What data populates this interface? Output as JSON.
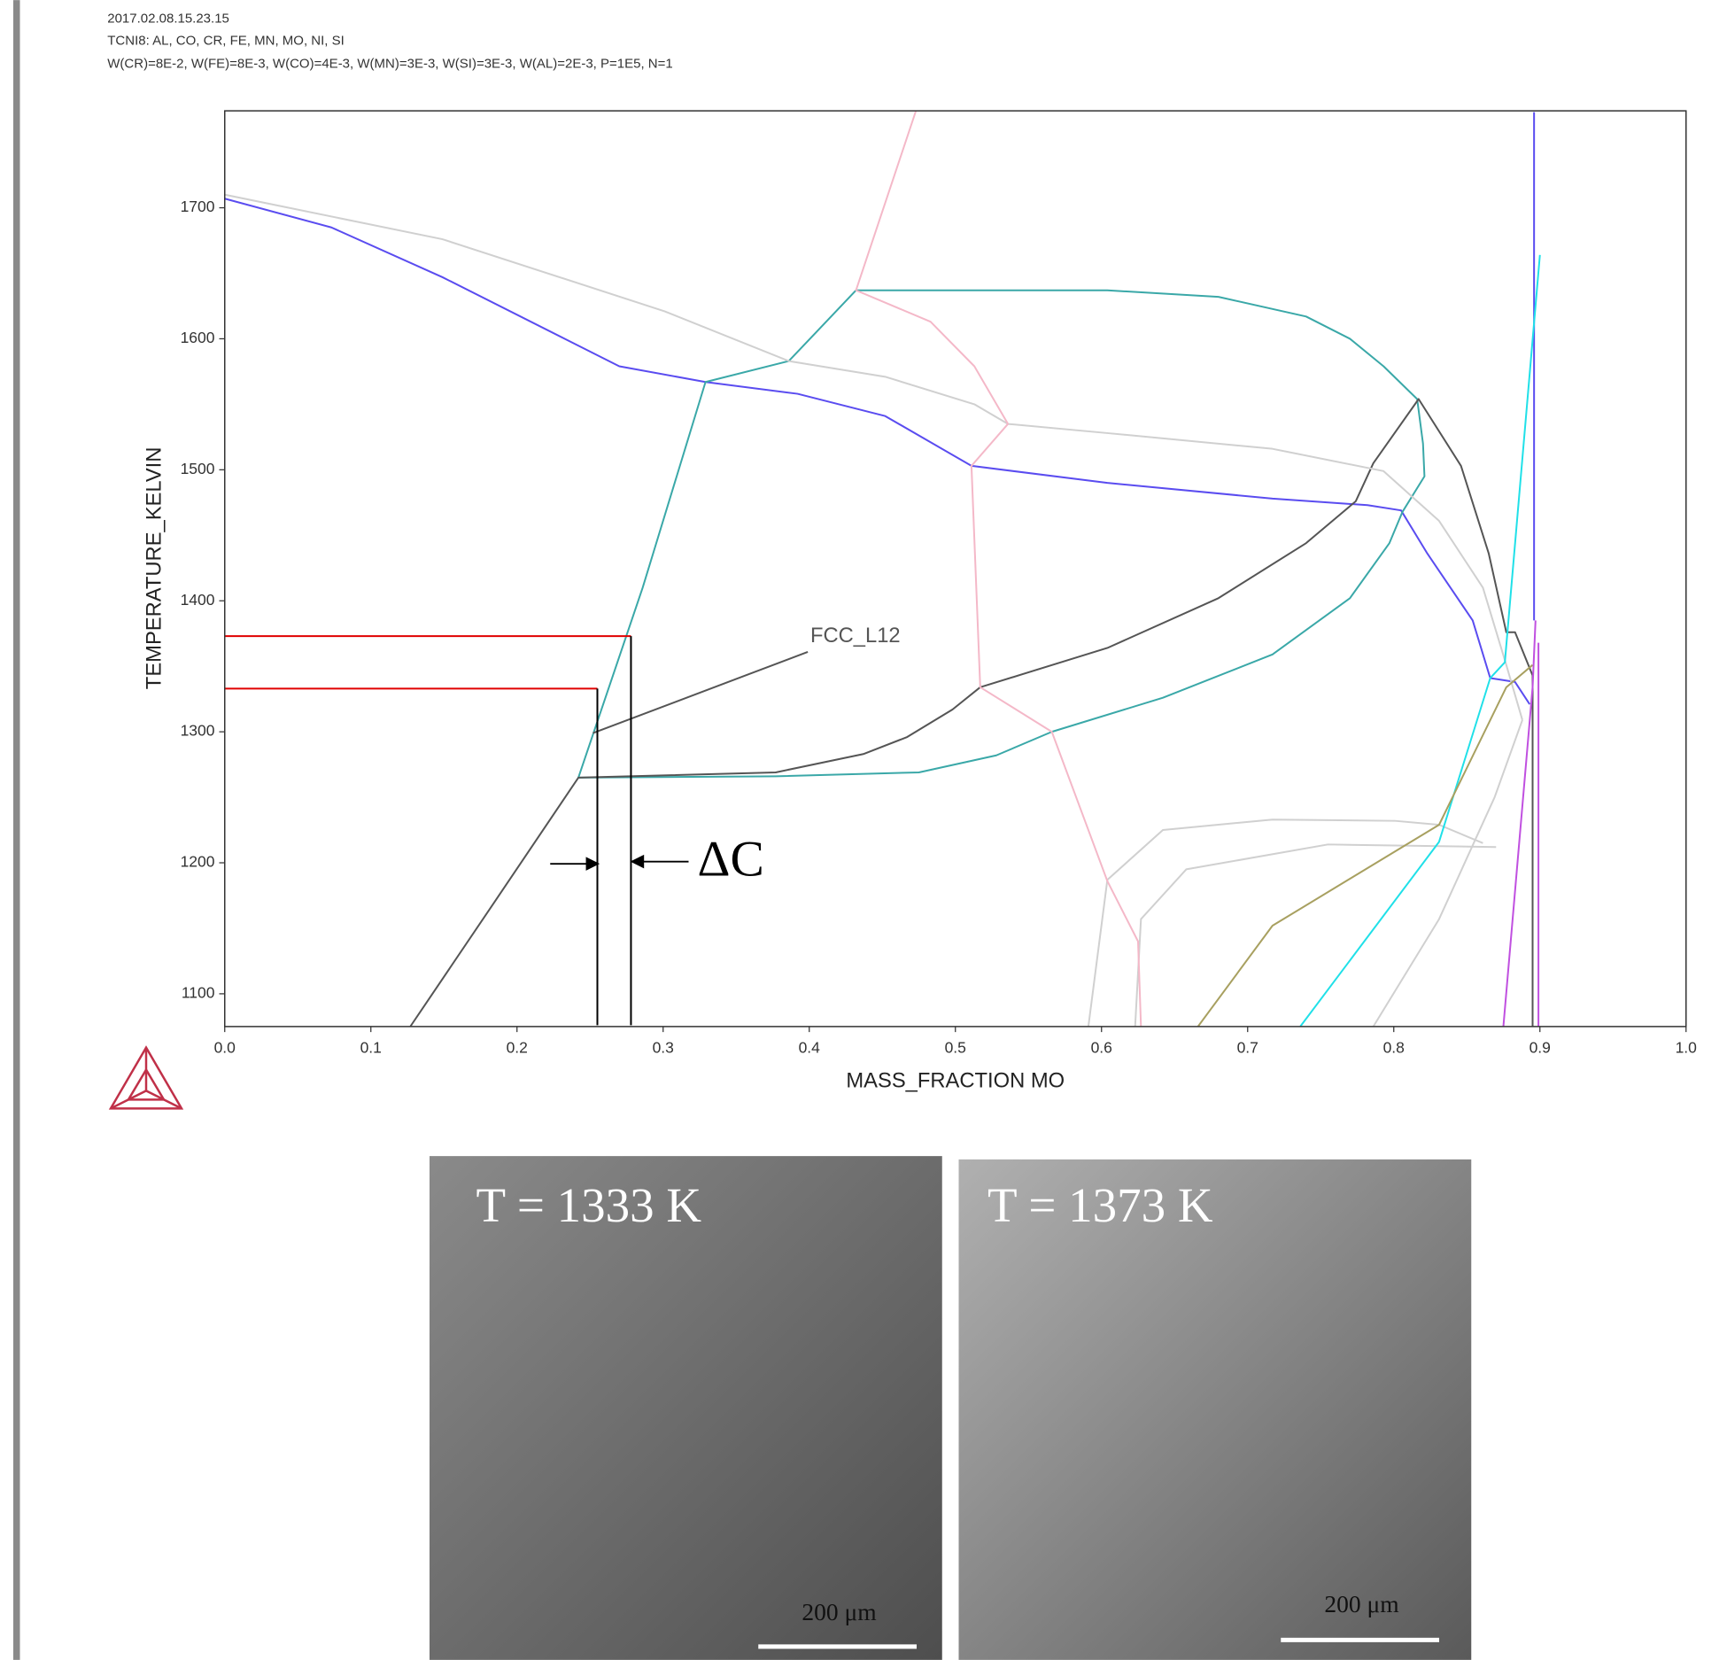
{
  "header": {
    "timestamp": "2017.02.08.15.23.15",
    "system": "TCNI8: AL, CO, CR, FE, MN, MO, NI, SI",
    "conditions": "W(CR)=8E-2, W(FE)=8E-3, W(CO)=4E-3, W(MN)=3E-3, W(SI)=3E-3, W(AL)=2E-3, P=1E5, N=1"
  },
  "chart_data": {
    "type": "line",
    "x_label": "MASS_FRACTION MO",
    "y_label": "TEMPERATURE_KELVIN",
    "xlim": [
      0,
      1
    ],
    "ylim": [
      1075,
      1774
    ],
    "xticks": [
      {
        "value": 0,
        "label": "0.0"
      },
      0.1,
      0.2,
      0.3,
      0.4,
      0.5,
      0.6,
      0.7,
      0.8,
      0.9,
      {
        "value": 1,
        "label": "1.0"
      }
    ],
    "yticks": [
      1100,
      1200,
      1300,
      1400,
      1500,
      1600,
      1700
    ],
    "series": [
      {
        "color": "#5a4cf0",
        "x": [
          0,
          0.073,
          0.149,
          0.27,
          0.329,
          0.392,
          0.452,
          0.511,
          0.604,
          0.717,
          0.782,
          0.805,
          0.823,
          0.854,
          0.866,
          0.883,
          0.893
        ],
        "values": [
          1707,
          1685,
          1647,
          1579,
          1567,
          1558,
          1541,
          1503,
          1490,
          1478,
          1473,
          1469,
          1436,
          1385,
          1341,
          1338,
          1321
        ]
      },
      {
        "color": "#5a4cf0",
        "x": [
          0.896,
          0.896
        ],
        "values": [
          1773,
          1385
        ]
      },
      {
        "color": "#3aa8a8",
        "x": [
          0.242,
          0.286,
          0.329,
          0.386,
          0.432,
          0.604,
          0.68,
          0.74,
          0.77,
          0.793,
          0.816,
          0.82,
          0.821,
          0.806,
          0.797,
          0.77,
          0.717,
          0.642,
          0.566,
          0.528,
          0.475,
          0.377,
          0.242
        ],
        "values": [
          1265,
          1410,
          1567,
          1583,
          1637,
          1637,
          1632,
          1617,
          1600,
          1579,
          1554,
          1520,
          1495,
          1468,
          1444,
          1402,
          1359,
          1326,
          1300,
          1282,
          1269,
          1266,
          1265
        ]
      },
      {
        "color": "#555555",
        "x": [
          0.127,
          0.187,
          0.242,
          0.377,
          0.437,
          0.467,
          0.498,
          0.517,
          0.604,
          0.68,
          0.74,
          0.774,
          0.786,
          0.817,
          0.846,
          0.865,
          0.877,
          0.883,
          0.895,
          0.895
        ],
        "values": [
          1075,
          1174,
          1265,
          1269,
          1283,
          1296,
          1317,
          1334,
          1364,
          1402,
          1444,
          1476,
          1505,
          1554,
          1503,
          1436,
          1376,
          1376,
          1343,
          1075
        ]
      },
      {
        "color": "#555555",
        "x": [
          0.399,
          0.252
        ],
        "values": [
          1361,
          1299
        ]
      },
      {
        "color": "#d0d0d0",
        "x": [
          0,
          0.149,
          0.301,
          0.386,
          0.452,
          0.513,
          0.536,
          0.604,
          0.717,
          0.793,
          0.831,
          0.861,
          0.877,
          0.888
        ],
        "values": [
          1710,
          1676,
          1621,
          1583,
          1571,
          1550,
          1535,
          1528,
          1516,
          1499,
          1461,
          1410,
          1351,
          1309
        ]
      },
      {
        "color": "#d0d0d0",
        "x": [
          0.591,
          0.604,
          0.642,
          0.717,
          0.801,
          0.831,
          0.861
        ],
        "values": [
          1075,
          1187,
          1225,
          1233,
          1232,
          1229,
          1215
        ]
      },
      {
        "color": "#d0d0d0",
        "x": [
          0.623,
          0.627,
          0.658,
          0.755,
          0.87
        ],
        "values": [
          1075,
          1157,
          1195,
          1214,
          1212
        ]
      },
      {
        "color": "#d0d0d0",
        "x": [
          0.786,
          0.831,
          0.869,
          0.888
        ],
        "values": [
          1075,
          1157,
          1250,
          1309
        ]
      },
      {
        "color": "#f4b8c8",
        "x": [
          0.473,
          0.432,
          0.483,
          0.513,
          0.536,
          0.511,
          0.517,
          0.566,
          0.604,
          0.625,
          0.627
        ],
        "values": [
          1774,
          1637,
          1613,
          1579,
          1535,
          1503,
          1334,
          1300,
          1186,
          1140,
          1075
        ]
      },
      {
        "color": "#20e0e8",
        "x": [
          0.736,
          0.831,
          0.866,
          0.876,
          0.9
        ],
        "values": [
          1075,
          1216,
          1341,
          1353,
          1664
        ]
      },
      {
        "color": "#a8a060",
        "x": [
          0.666,
          0.717,
          0.831,
          0.877,
          0.895
        ],
        "values": [
          1075,
          1152,
          1229,
          1334,
          1351
        ]
      },
      {
        "color": "#c050e0",
        "x": [
          0.875,
          0.895,
          0.897
        ],
        "values": [
          1075,
          1334,
          1385
        ]
      },
      {
        "color": "#c050e0",
        "x": [
          0.899,
          0.899
        ],
        "values": [
          1368,
          1075
        ]
      },
      {
        "color": "#e00000",
        "x": [
          0,
          0.278
        ],
        "values": [
          1373,
          1373
        ]
      },
      {
        "color": "#e00000",
        "x": [
          0,
          0.255
        ],
        "values": [
          1333,
          1333
        ]
      },
      {
        "color": "#000000",
        "x": [
          0.278,
          0.278
        ],
        "values": [
          1373,
          1076
        ]
      },
      {
        "color": "#000000",
        "x": [
          0.255,
          0.255
        ],
        "values": [
          1333,
          1076
        ]
      }
    ],
    "annotations": [
      "FCC_L12",
      "ΔC"
    ]
  },
  "micrographs": [
    {
      "label": "T = 1333 K",
      "scale_bar": "200 μm"
    },
    {
      "label": "T = 1373 K",
      "scale_bar": "200 μm"
    }
  ]
}
